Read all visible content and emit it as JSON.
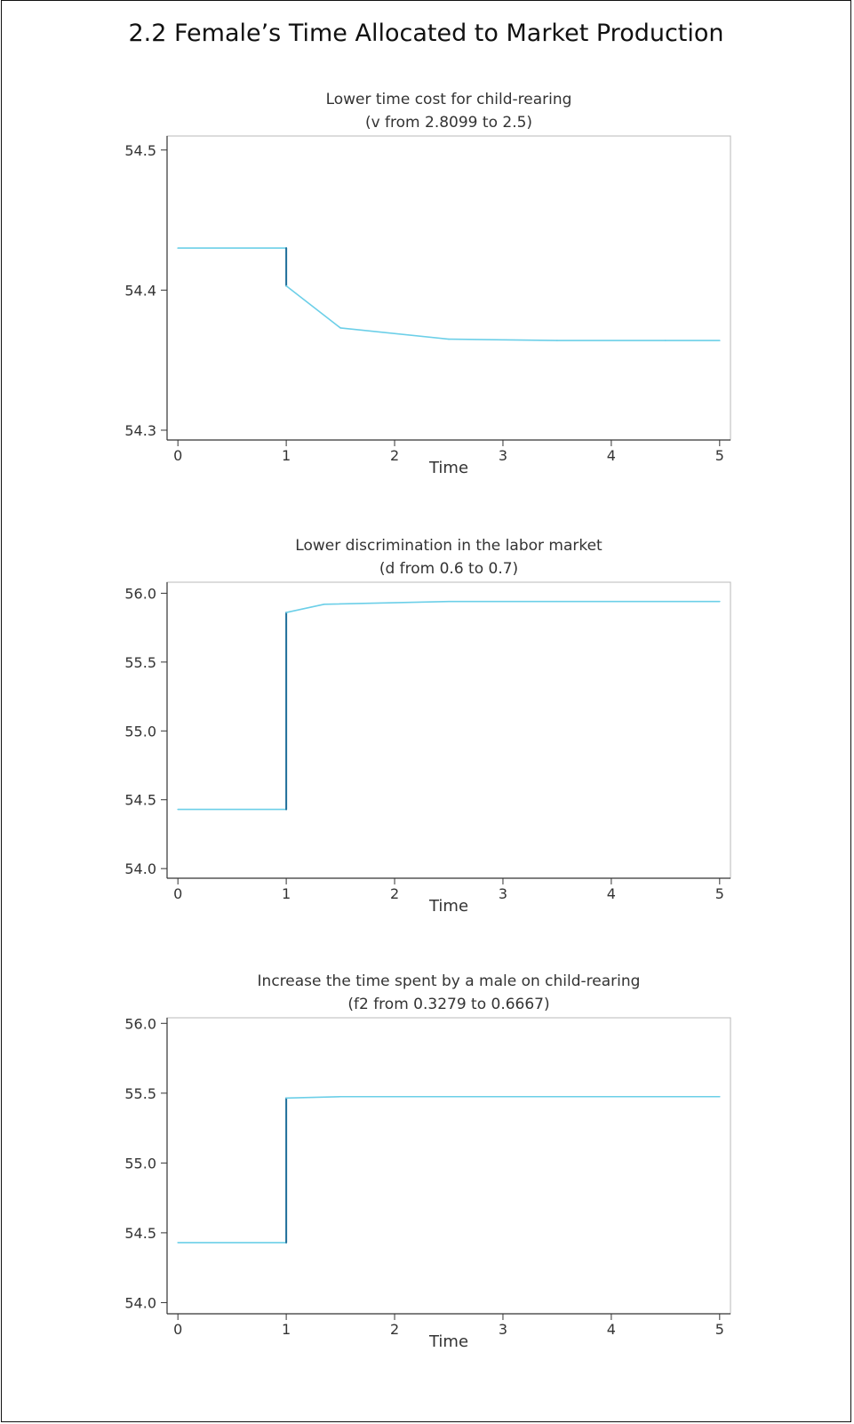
{
  "page": {
    "title": "2.2  Female’s Time Allocated to Market Production"
  },
  "chart_data": [
    {
      "type": "line",
      "title": "Lower time cost for child-rearing",
      "subtitle": "(v from 2.8099 to 2.5)",
      "xlabel": "Time",
      "ylabel": "",
      "xlim": [
        -0.1,
        5.1
      ],
      "ylim": [
        54.293,
        54.51
      ],
      "x_ticks": [
        0,
        1,
        2,
        3,
        4,
        5
      ],
      "x_tick_labels": [
        "0",
        "1",
        "2",
        "3",
        "4",
        "5"
      ],
      "y_ticks": [
        54.3,
        54.4,
        54.5
      ],
      "y_tick_labels": [
        "54.3",
        "54.4",
        "54.5"
      ],
      "grid": false,
      "legend": "none",
      "line_color": "#6ccfe8",
      "jump_color": "#1f6e99",
      "x": [
        0,
        1,
        1,
        1.5,
        2.5,
        3.5,
        4.5,
        5
      ],
      "y": [
        54.43,
        54.43,
        54.403,
        54.373,
        54.365,
        54.364,
        54.364,
        54.364
      ]
    },
    {
      "type": "line",
      "title": "Lower discrimination in the labor market",
      "subtitle": "(d from 0.6 to 0.7)",
      "xlabel": "Time",
      "ylabel": "",
      "xlim": [
        -0.1,
        5.1
      ],
      "ylim": [
        53.93,
        56.08
      ],
      "x_ticks": [
        0,
        1,
        2,
        3,
        4,
        5
      ],
      "x_tick_labels": [
        "0",
        "1",
        "2",
        "3",
        "4",
        "5"
      ],
      "y_ticks": [
        54.0,
        54.5,
        55.0,
        55.5,
        56.0
      ],
      "y_tick_labels": [
        "54.0",
        "54.5",
        "55.0",
        "55.5",
        "56.0"
      ],
      "grid": false,
      "legend": "none",
      "line_color": "#6ccfe8",
      "jump_color": "#1f6e99",
      "x": [
        0,
        1,
        1,
        1.35,
        2.5,
        3.5,
        5
      ],
      "y": [
        54.43,
        54.43,
        55.86,
        55.92,
        55.94,
        55.94,
        55.94
      ]
    },
    {
      "type": "line",
      "title": "Increase the time spent by a male on child-rearing",
      "subtitle": "(f2 from 0.3279 to 0.6667)",
      "xlabel": "Time",
      "ylabel": "",
      "xlim": [
        -0.1,
        5.1
      ],
      "ylim": [
        53.92,
        56.04
      ],
      "x_ticks": [
        0,
        1,
        2,
        3,
        4,
        5
      ],
      "x_tick_labels": [
        "0",
        "1",
        "2",
        "3",
        "4",
        "5"
      ],
      "y_ticks": [
        54.0,
        54.5,
        55.0,
        55.5,
        56.0
      ],
      "y_tick_labels": [
        "54.0",
        "54.5",
        "55.0",
        "55.5",
        "56.0"
      ],
      "grid": false,
      "legend": "none",
      "line_color": "#6ccfe8",
      "jump_color": "#1f6e99",
      "x": [
        0,
        1,
        1,
        1.5,
        2.5,
        5
      ],
      "y": [
        54.43,
        54.43,
        55.465,
        55.475,
        55.475,
        55.475
      ]
    }
  ]
}
